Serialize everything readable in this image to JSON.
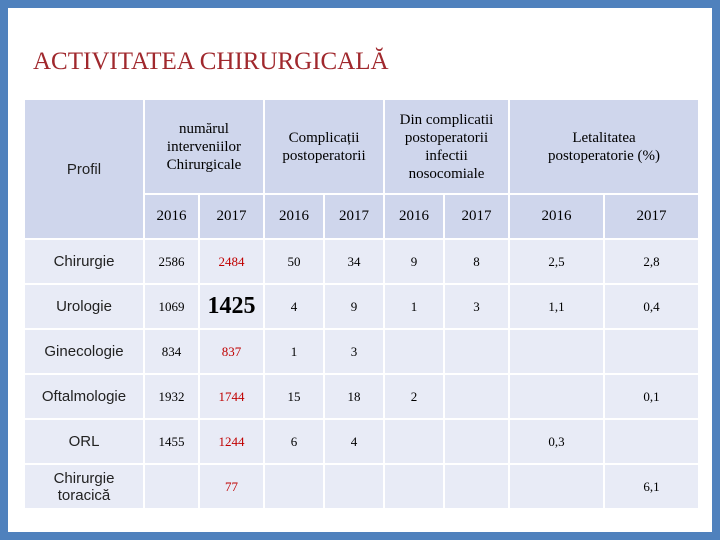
{
  "title": "ACTIVITATEA CHIRURGICALĂ",
  "table": {
    "headers": [
      "Profil",
      "numărul\ninterveniilor\nChirurgicale",
      "Complicații\npostoperatorii",
      "Din complicatii\npostoperatorii\ninfectii\nnosocomiale",
      "Letalitatea\npostoperatorie (%)"
    ],
    "years": [
      "2016",
      "2017",
      "2016",
      "2017",
      "2016",
      "2017",
      "2016",
      "2017"
    ],
    "rows": [
      [
        "Chirurgie",
        "2586",
        "2484",
        "50",
        "34",
        "9",
        "8",
        "2,5",
        "2,8"
      ],
      [
        "Urologie",
        "1069",
        "1425",
        "4",
        "9",
        "1",
        "3",
        "1,1",
        "0,4"
      ],
      [
        "Ginecologie",
        "834",
        "837",
        "1",
        "3",
        null,
        null,
        null,
        null
      ],
      [
        "Oftalmologie",
        "1932",
        "1744",
        "15",
        "18",
        "2",
        null,
        null,
        "0,1"
      ],
      [
        "ORL",
        "1455",
        "1244",
        "6",
        "4",
        null,
        null,
        "0,3",
        null
      ],
      [
        "Chirurgie\ntoracică",
        null,
        "77",
        null,
        null,
        null,
        null,
        null,
        "6,1"
      ]
    ]
  }
}
